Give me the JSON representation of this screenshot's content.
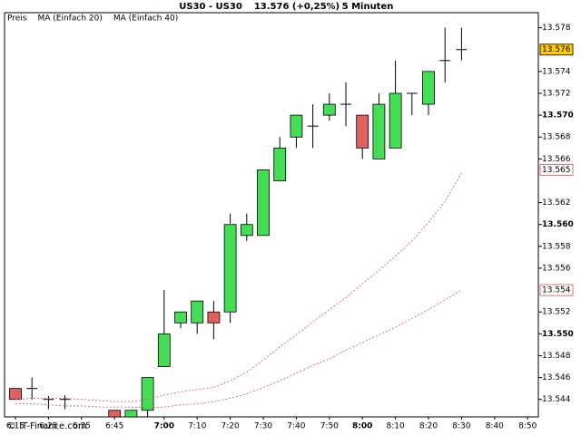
{
  "chart_data": {
    "type": "candlestick",
    "title": [
      "US30 - US30",
      "13.576 (+0,25%)",
      "5 Minuten"
    ],
    "watermark": "© IT-Finance.com",
    "categories": [
      "6:15",
      null,
      "6:25",
      null,
      "6:35",
      null,
      "6:45",
      null,
      null,
      "7:00",
      null,
      "7:10",
      null,
      "7:20",
      null,
      "7:30",
      null,
      "7:40",
      null,
      "7:50",
      null,
      "8:00",
      null,
      "8:10",
      null,
      "8:20",
      null,
      "8:30",
      null,
      "8:40",
      null,
      "8:50"
    ],
    "ylim": [
      13.5424,
      13.5783
    ],
    "yticks": [
      13.544,
      13.546,
      13.548,
      {
        "value": 13.55,
        "label": "13.550",
        "bold": true
      },
      13.552,
      13.556,
      13.558,
      {
        "value": 13.56,
        "label": "13.560",
        "bold": true
      },
      13.562,
      13.566,
      13.568,
      {
        "value": 13.57,
        "label": "13.570",
        "bold": true
      },
      13.572,
      13.574,
      13.578
    ],
    "up_color": "#44dd55",
    "down_color": "#e06060",
    "series": [
      {
        "name": "Preis",
        "type": "candlestick",
        "color": "#000000",
        "open": [
          13.545,
          13.545,
          13.544,
          13.544,
          null,
          null,
          13.543,
          13.5424,
          13.543,
          13.547,
          13.551,
          13.551,
          13.552,
          13.552,
          13.559,
          13.559,
          13.564,
          13.568,
          13.569,
          13.57,
          13.571,
          13.57,
          13.566,
          13.567,
          13.572,
          13.571,
          13.575,
          13.576,
          null,
          null,
          null,
          null
        ],
        "high": [
          13.545,
          13.546,
          13.5443,
          13.5444,
          null,
          null,
          13.543,
          13.543,
          13.546,
          13.554,
          13.552,
          13.553,
          13.553,
          13.561,
          13.561,
          13.565,
          13.568,
          13.57,
          13.571,
          13.572,
          13.573,
          13.57,
          13.572,
          13.575,
          13.572,
          13.574,
          13.578,
          13.578,
          null,
          null,
          null,
          null
        ],
        "low": [
          13.544,
          13.544,
          13.5431,
          13.5431,
          null,
          null,
          13.5424,
          13.5424,
          13.5424,
          13.547,
          13.5505,
          13.55,
          13.5495,
          13.551,
          13.5585,
          13.559,
          13.564,
          13.567,
          13.567,
          13.5695,
          13.569,
          13.566,
          13.566,
          13.567,
          13.57,
          13.57,
          13.573,
          13.575,
          null,
          null,
          null,
          null
        ],
        "close": [
          13.544,
          13.545,
          13.544,
          13.544,
          null,
          null,
          13.5424,
          13.543,
          13.546,
          13.55,
          13.552,
          13.553,
          13.551,
          13.56,
          13.56,
          13.565,
          13.567,
          13.57,
          13.569,
          13.571,
          13.571,
          13.567,
          13.571,
          13.572,
          13.572,
          13.574,
          13.575,
          13.576,
          null,
          null,
          null,
          null
        ]
      },
      {
        "name": "MA (Einfach 20)",
        "type": "line",
        "color": "#e05050",
        "values": [
          13.544,
          13.5441,
          13.5441,
          13.5441,
          13.544,
          13.5439,
          13.5438,
          13.5438,
          13.544,
          13.5444,
          13.5447,
          13.5449,
          13.5451,
          13.5457,
          13.5465,
          13.5476,
          13.5488,
          13.5499,
          13.5511,
          13.5522,
          13.5533,
          13.5546,
          13.5558,
          13.5571,
          13.5585,
          13.5602,
          13.5621,
          13.5647,
          null,
          null,
          null,
          null
        ]
      },
      {
        "name": "MA (Einfach 40)",
        "type": "line",
        "color": "#e05050",
        "values": [
          13.5436,
          13.5436,
          13.5435,
          13.5434,
          13.5434,
          13.5433,
          13.5433,
          13.5433,
          13.5432,
          13.5433,
          13.5435,
          13.5436,
          13.5438,
          13.5441,
          13.5445,
          13.5451,
          13.5457,
          13.5464,
          13.5471,
          13.5477,
          13.5485,
          13.5492,
          13.5499,
          13.5506,
          13.5514,
          13.5522,
          13.5531,
          13.554,
          null,
          null,
          null,
          null
        ]
      }
    ],
    "axis_markers": [
      {
        "value": 13.576,
        "background": "#ffcc00",
        "color": "#000000"
      },
      {
        "value": 13.565,
        "background": "#ffffff",
        "color": "#e05050"
      },
      {
        "value": 13.554,
        "background": "#ffffff",
        "color": "#e05050"
      }
    ]
  }
}
